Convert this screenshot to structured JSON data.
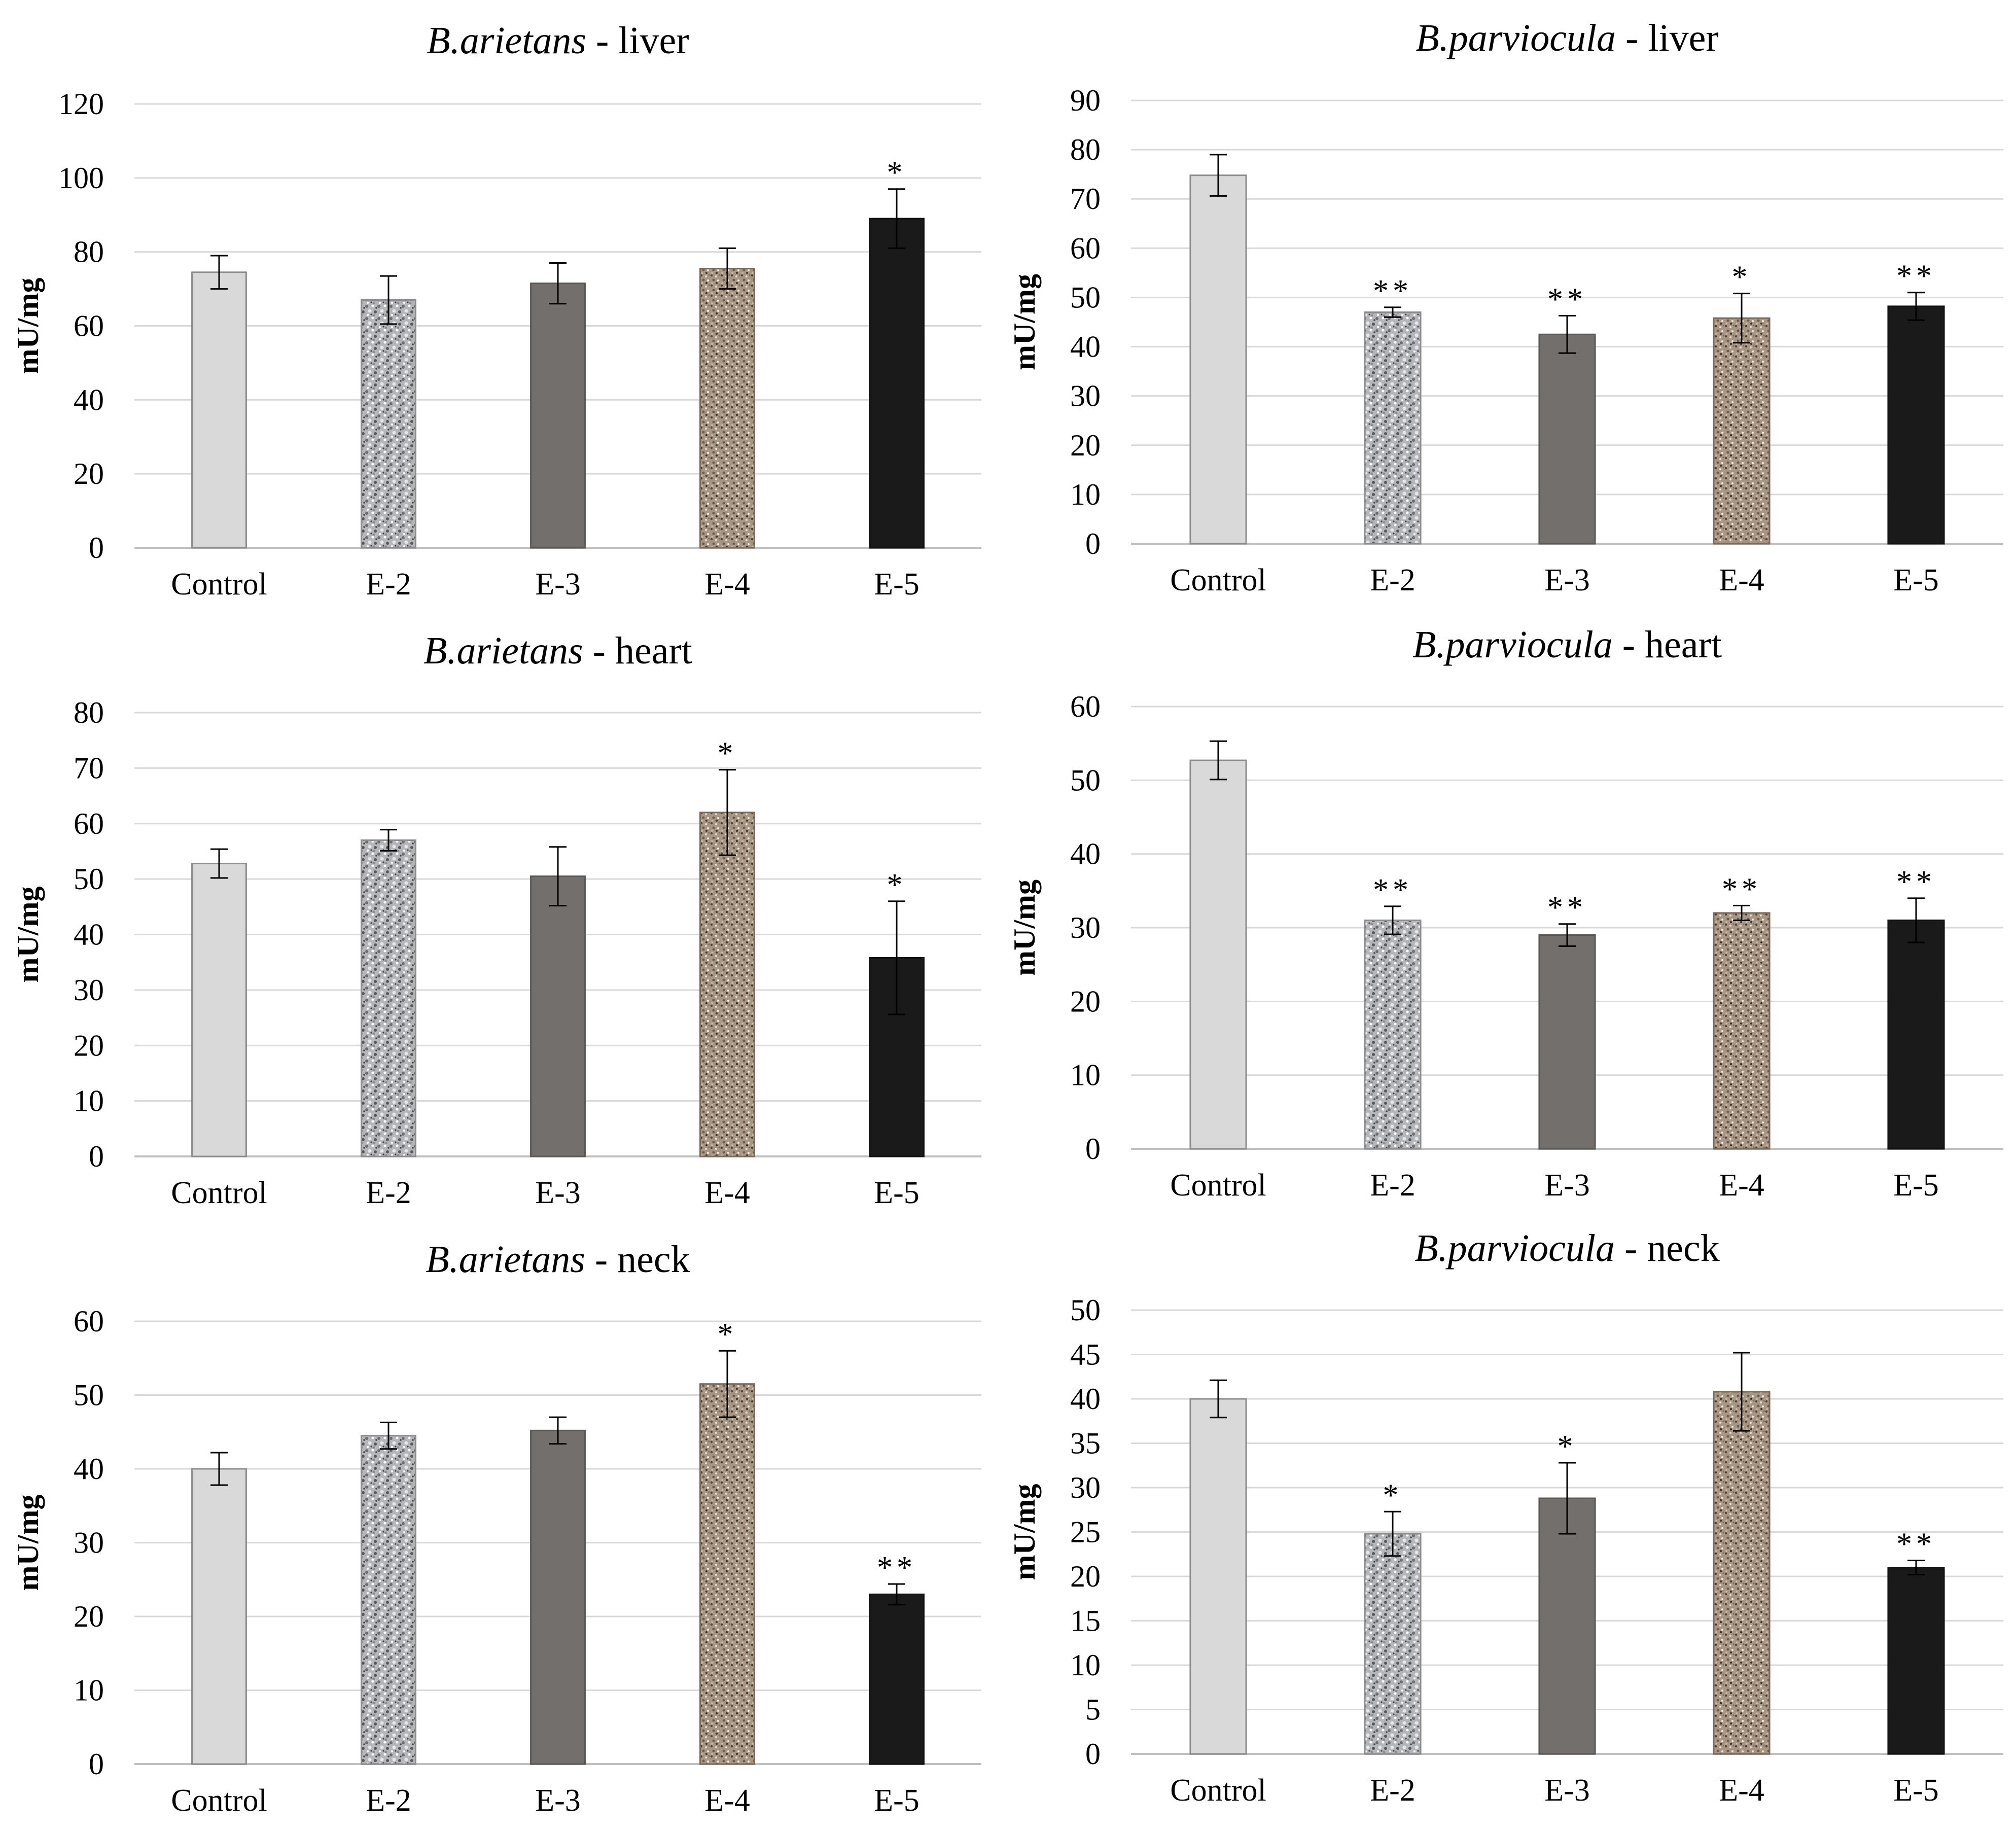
{
  "chart_data": [
    {
      "type": "bar",
      "title_italic": "B.arietans",
      "title_rest": " - liver",
      "ylabel": "mU/mg",
      "xlabel": "",
      "ylim": [
        0,
        120
      ],
      "ytick_step": 20,
      "categories": [
        "Control",
        "E-2",
        "E-3",
        "E-4",
        "E-5"
      ],
      "values": [
        74.5,
        67,
        71.5,
        75.5,
        89
      ],
      "errors": [
        4.5,
        6.5,
        5.5,
        5.5,
        8
      ],
      "significance": [
        "",
        "",
        "",
        "",
        "*"
      ]
    },
    {
      "type": "bar",
      "title_italic": "B.parviocula",
      "title_rest": " - liver",
      "ylabel": "mU/mg",
      "xlabel": "",
      "ylim": [
        0,
        90
      ],
      "ytick_step": 10,
      "categories": [
        "Control",
        "E-2",
        "E-3",
        "E-4",
        "E-5"
      ],
      "values": [
        74.8,
        47,
        42.5,
        45.8,
        48.2
      ],
      "errors": [
        4.2,
        1,
        3.8,
        5,
        2.8
      ],
      "significance": [
        "",
        "**",
        "**",
        "*",
        "**"
      ]
    },
    {
      "type": "bar",
      "title_italic": "B.arietans",
      "title_rest": " - heart",
      "ylabel": "mU/mg",
      "xlabel": "",
      "ylim": [
        0,
        80
      ],
      "ytick_step": 10,
      "categories": [
        "Control",
        "E-2",
        "E-3",
        "E-4",
        "E-5"
      ],
      "values": [
        52.8,
        57,
        50.5,
        62,
        35.8
      ],
      "errors": [
        2.6,
        1.9,
        5.3,
        7.7,
        10.2
      ],
      "significance": [
        "",
        "",
        "",
        "*",
        "*"
      ]
    },
    {
      "type": "bar",
      "title_italic": "B.parviocula",
      "title_rest": " - heart",
      "ylabel": "mU/mg",
      "xlabel": "",
      "ylim": [
        0,
        60
      ],
      "ytick_step": 10,
      "categories": [
        "Control",
        "E-2",
        "E-3",
        "E-4",
        "E-5"
      ],
      "values": [
        52.7,
        31,
        29,
        32,
        31
      ],
      "errors": [
        2.6,
        1.9,
        1.5,
        1,
        3
      ],
      "significance": [
        "",
        "**",
        "**",
        "**",
        "**"
      ]
    },
    {
      "type": "bar",
      "title_italic": "B.arietans",
      "title_rest": " - neck",
      "ylabel": "mU/mg",
      "xlabel": "",
      "ylim": [
        0,
        60
      ],
      "ytick_step": 10,
      "categories": [
        "Control",
        "E-2",
        "E-3",
        "E-4",
        "E-5"
      ],
      "values": [
        40,
        44.5,
        45.2,
        51.5,
        23
      ],
      "errors": [
        2.2,
        1.8,
        1.8,
        4.5,
        1.4
      ],
      "significance": [
        "",
        "",
        "",
        "*",
        "**"
      ]
    },
    {
      "type": "bar",
      "title_italic": "B.parviocula",
      "title_rest": " - neck",
      "ylabel": "mU/mg",
      "xlabel": "",
      "ylim": [
        0,
        50
      ],
      "ytick_step": 5,
      "categories": [
        "Control",
        "E-2",
        "E-3",
        "E-4",
        "E-5"
      ],
      "values": [
        40,
        24.8,
        28.8,
        40.8,
        21
      ],
      "errors": [
        2.1,
        2.5,
        4,
        4.4,
        0.8
      ],
      "significance": [
        "",
        "*",
        "*",
        "",
        "**"
      ]
    }
  ]
}
